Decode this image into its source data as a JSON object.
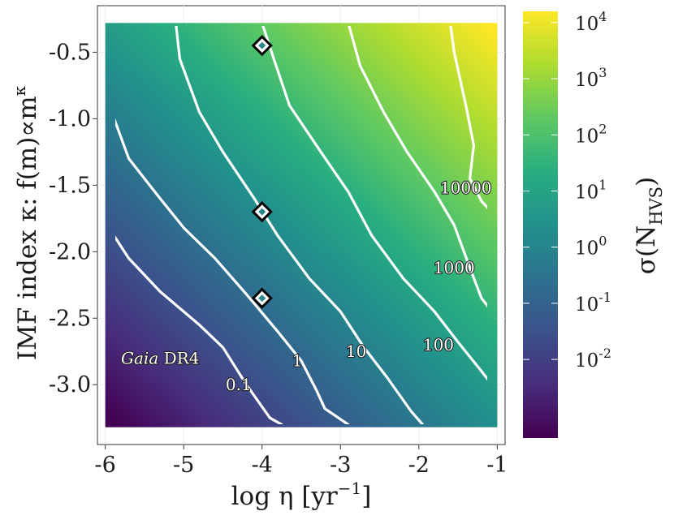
{
  "chart_data": {
    "type": "heatmap",
    "xlabel": "log η [yr",
    "xlabel_sup": "−1",
    "xlabel_end": "]",
    "ylabel_pre": "IMF index κ: f(m)∝m",
    "ylabel_sup": "κ",
    "xlim": [
      -6.1,
      -0.9
    ],
    "ylim": [
      -3.45,
      -0.15
    ],
    "x_ticks": [
      -6,
      -5,
      -4,
      -3,
      -2,
      -1
    ],
    "x_tick_labels": [
      "-6",
      "-5",
      "-4",
      "-3",
      "-2",
      "-1"
    ],
    "y_ticks": [
      -0.5,
      -1.0,
      -1.5,
      -2.0,
      -2.5,
      -3.0
    ],
    "y_tick_labels": [
      "-0.5",
      "-1.0",
      "-1.5",
      "-2.0",
      "-2.5",
      "-3.0"
    ],
    "grid": true,
    "x_range": [
      -6.0,
      -1.0
    ],
    "y_range": [
      -3.32,
      -0.28
    ],
    "colormap": "viridis",
    "colorbar": {
      "title": "σ(N",
      "title_sub": "HVS",
      "title_end": ")",
      "scale": "log",
      "range_log10": [
        -3.4,
        4.2
      ],
      "ticks": [
        {
          "log10": -2,
          "base": "10",
          "exp": "-2"
        },
        {
          "log10": -1,
          "base": "10",
          "exp": "-1"
        },
        {
          "log10": 0,
          "base": "10",
          "exp": "0"
        },
        {
          "log10": 1,
          "base": "10",
          "exp": "1"
        },
        {
          "log10": 2,
          "base": "10",
          "exp": "2"
        },
        {
          "log10": 3,
          "base": "10",
          "exp": "3"
        },
        {
          "log10": 4,
          "base": "10",
          "exp": "4"
        }
      ]
    },
    "contours": [
      {
        "level": "0.1",
        "points": [
          [
            -6.0,
            -1.78
          ],
          [
            -5.7,
            -2.05
          ],
          [
            -5.3,
            -2.3
          ],
          [
            -4.8,
            -2.55
          ],
          [
            -4.5,
            -2.72
          ],
          [
            -4.2,
            -3.0
          ],
          [
            -3.9,
            -3.25
          ],
          [
            -3.75,
            -3.3
          ]
        ],
        "label_at": [
          -4.3,
          -3.0
        ]
      },
      {
        "level": "1",
        "points": [
          [
            -6.0,
            -0.82
          ],
          [
            -5.7,
            -1.3
          ],
          [
            -5.3,
            -1.6
          ],
          [
            -5.0,
            -1.82
          ],
          [
            -4.6,
            -2.05
          ],
          [
            -4.2,
            -2.32
          ],
          [
            -3.8,
            -2.6
          ],
          [
            -3.5,
            -2.82
          ],
          [
            -3.3,
            -3.05
          ],
          [
            -3.2,
            -3.18
          ],
          [
            -2.9,
            -3.3
          ]
        ],
        "label_at": [
          -3.55,
          -2.82
        ]
      },
      {
        "level": "10",
        "points": [
          [
            -5.1,
            -0.28
          ],
          [
            -5.05,
            -0.55
          ],
          [
            -4.8,
            -0.95
          ],
          [
            -4.5,
            -1.25
          ],
          [
            -4.1,
            -1.6
          ],
          [
            -3.8,
            -1.88
          ],
          [
            -3.4,
            -2.2
          ],
          [
            -3.0,
            -2.45
          ],
          [
            -2.7,
            -2.72
          ],
          [
            -2.4,
            -2.95
          ],
          [
            -2.1,
            -3.2
          ],
          [
            -1.95,
            -3.3
          ]
        ],
        "label_at": [
          -2.8,
          -2.75
        ]
      },
      {
        "level": "100",
        "points": [
          [
            -4.0,
            -0.28
          ],
          [
            -3.85,
            -0.55
          ],
          [
            -3.65,
            -0.9
          ],
          [
            -3.25,
            -1.25
          ],
          [
            -2.9,
            -1.55
          ],
          [
            -2.6,
            -1.88
          ],
          [
            -2.2,
            -2.2
          ],
          [
            -1.8,
            -2.45
          ],
          [
            -1.5,
            -2.68
          ],
          [
            -1.2,
            -2.9
          ],
          [
            -1.0,
            -3.05
          ]
        ],
        "label_at": [
          -1.75,
          -2.7
        ]
      },
      {
        "level": "1000",
        "points": [
          [
            -2.9,
            -0.28
          ],
          [
            -2.75,
            -0.6
          ],
          [
            -2.45,
            -0.95
          ],
          [
            -2.15,
            -1.25
          ],
          [
            -1.8,
            -1.55
          ],
          [
            -1.55,
            -1.8
          ],
          [
            -1.35,
            -2.12
          ],
          [
            -1.2,
            -2.35
          ],
          [
            -1.0,
            -2.5
          ]
        ],
        "label_at": [
          -1.55,
          -2.12
        ]
      },
      {
        "level": "10000",
        "points": [
          [
            -1.6,
            -0.28
          ],
          [
            -1.55,
            -0.5
          ],
          [
            -1.4,
            -0.9
          ],
          [
            -1.3,
            -1.2
          ],
          [
            -1.35,
            -1.45
          ],
          [
            -1.2,
            -1.62
          ],
          [
            -1.0,
            -1.75
          ]
        ],
        "label_at": [
          -1.4,
          -1.52
        ]
      }
    ],
    "markers": [
      {
        "x": -4.0,
        "y": -0.45
      },
      {
        "x": -4.0,
        "y": -1.7
      },
      {
        "x": -4.0,
        "y": -2.35
      }
    ],
    "annotation": {
      "italic": "Gaia",
      "rest": " DR4",
      "at": [
        -5.3,
        -2.8
      ]
    }
  }
}
